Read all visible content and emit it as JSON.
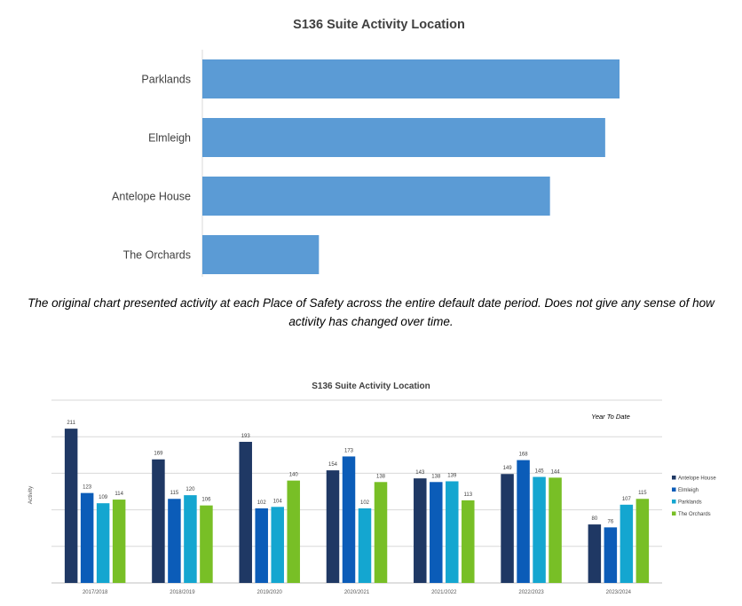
{
  "caption": "The original chart presented activity at each Place of Safety across the entire default date period. Does not give any sense of how activity has changed over time.",
  "colors": {
    "bar1": "#5b9bd5",
    "antelope": "#1f3864",
    "elmleigh": "#0b5cb8",
    "parklands": "#14a6d0",
    "orchards": "#78bf26"
  },
  "chart_data": [
    {
      "type": "bar",
      "orientation": "horizontal",
      "title": "S136 Suite Activity Location",
      "categories": [
        "Parklands",
        "Elmleigh",
        "Antelope House",
        "The Orchards"
      ],
      "values": [
        1020,
        985,
        850,
        285
      ],
      "xlabel": "",
      "ylabel": "",
      "grid": false,
      "legend": "none"
    },
    {
      "type": "bar",
      "title": "S136 Suite Activity Location",
      "annotation": "Year To Date",
      "categories": [
        "2017/2018",
        "2018/2019",
        "2019/2020",
        "2020/2021",
        "2021/2022",
        "2022/2023",
        "2023/2024"
      ],
      "series": [
        {
          "name": "Antelope House",
          "values": [
            211,
            169,
            193,
            154,
            143,
            149,
            80
          ]
        },
        {
          "name": "Elmleigh",
          "values": [
            123,
            115,
            102,
            173,
            138,
            168,
            76
          ]
        },
        {
          "name": "Parklands",
          "values": [
            109,
            120,
            104,
            102,
            139,
            145,
            107
          ]
        },
        {
          "name": "The Orchards",
          "values": [
            114,
            106,
            140,
            138,
            113,
            144,
            115
          ]
        }
      ],
      "xlabel": "",
      "ylabel": "Activity",
      "ylim": [
        0,
        250
      ],
      "grid": true,
      "legend": "right"
    }
  ]
}
